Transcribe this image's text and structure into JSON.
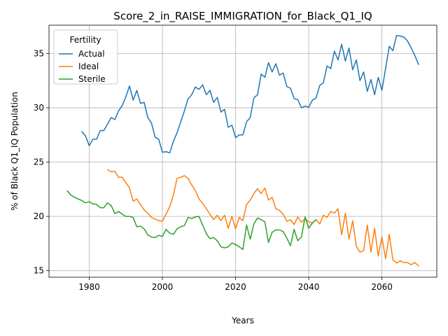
{
  "chart_data": {
    "type": "line",
    "title": "Score_2_in_RAISE_IMMIGRATION_for_Black_Q1_IQ",
    "xlabel": "Years",
    "ylabel": "% of Black Q1_IQ Population",
    "xlim": [
      1969,
      2075
    ],
    "ylim": [
      14.4,
      37.6
    ],
    "xticks": [
      1980,
      2000,
      2020,
      2040,
      2060
    ],
    "yticks": [
      15,
      20,
      25,
      30,
      35
    ],
    "grid": true,
    "legend": {
      "title": "Fertility",
      "position": "top-left"
    },
    "series": [
      {
        "name": "Actual",
        "color": "#1f77b4",
        "x": [
          1978,
          1979,
          1980,
          1981,
          1982,
          1983,
          1984,
          1985,
          1986,
          1987,
          1988,
          1989,
          1990,
          1991,
          1992,
          1993,
          1994,
          1995,
          1996,
          1997,
          1998,
          1999,
          2000,
          2001,
          2002,
          2003,
          2004,
          2005,
          2006,
          2007,
          2008,
          2009,
          2010,
          2011,
          2012,
          2013,
          2014,
          2015,
          2016,
          2017,
          2018,
          2019,
          2020,
          2021,
          2022,
          2023,
          2024,
          2025,
          2026,
          2027,
          2028,
          2029,
          2030,
          2031,
          2032,
          2033,
          2034,
          2035,
          2036,
          2037,
          2038,
          2039,
          2040,
          2041,
          2042,
          2043,
          2044,
          2045,
          2046,
          2047,
          2048,
          2049,
          2050,
          2051,
          2052,
          2053,
          2054,
          2055,
          2056,
          2057,
          2058,
          2059,
          2060,
          2061,
          2062,
          2063,
          2064,
          2065,
          2066,
          2067,
          2068,
          2069,
          2070
        ],
        "values": [
          27.8,
          27.4,
          26.5,
          27.1,
          27.1,
          27.9,
          27.9,
          28.5,
          29.1,
          28.9,
          29.7,
          30.2,
          31.0,
          32.0,
          30.7,
          31.6,
          30.4,
          30.5,
          29.1,
          28.6,
          27.3,
          27.1,
          25.9,
          25.95,
          25.85,
          26.9,
          27.7,
          28.7,
          29.7,
          30.8,
          31.2,
          31.9,
          31.7,
          32.1,
          31.2,
          31.6,
          30.5,
          30.95,
          29.6,
          29.85,
          28.2,
          28.4,
          27.25,
          27.5,
          27.5,
          28.7,
          29.1,
          30.9,
          31.2,
          33.1,
          32.8,
          34.15,
          33.3,
          34.05,
          33.0,
          33.2,
          31.95,
          31.8,
          30.85,
          30.75,
          30.0,
          30.15,
          30.05,
          30.7,
          30.9,
          32.05,
          32.3,
          33.85,
          33.6,
          35.2,
          34.4,
          35.85,
          34.3,
          35.5,
          33.5,
          34.4,
          32.5,
          33.3,
          31.5,
          32.6,
          31.2,
          32.8,
          31.6,
          33.6,
          35.65,
          35.25,
          36.65,
          36.6,
          36.5,
          36.15,
          35.5,
          34.8,
          34.0
        ]
      },
      {
        "name": "Ideal",
        "color": "#ff7f0e",
        "x": [
          1985,
          1986,
          1987,
          1988,
          1989,
          1990,
          1991,
          1992,
          1993,
          1994,
          1995,
          1996,
          1997,
          1998,
          1999,
          2000,
          2001,
          2002,
          2003,
          2004,
          2005,
          2006,
          2007,
          2008,
          2009,
          2010,
          2011,
          2012,
          2013,
          2014,
          2015,
          2016,
          2017,
          2018,
          2019,
          2020,
          2021,
          2022,
          2023,
          2024,
          2025,
          2026,
          2027,
          2028,
          2029,
          2030,
          2031,
          2032,
          2033,
          2034,
          2035,
          2036,
          2037,
          2038,
          2039,
          2040,
          2041,
          2042,
          2043,
          2044,
          2045,
          2046,
          2047,
          2048,
          2049,
          2050,
          2051,
          2052,
          2053,
          2054,
          2055,
          2056,
          2057,
          2058,
          2059,
          2060,
          2061,
          2062,
          2063,
          2064,
          2065,
          2066,
          2067,
          2068,
          2069,
          2070
        ],
        "values": [
          24.3,
          24.1,
          24.15,
          23.6,
          23.6,
          23.1,
          22.65,
          21.4,
          21.6,
          21.1,
          20.6,
          20.3,
          19.9,
          19.75,
          19.6,
          19.55,
          20.2,
          20.9,
          21.95,
          23.5,
          23.6,
          23.75,
          23.5,
          22.9,
          22.4,
          21.6,
          21.2,
          20.7,
          20.2,
          19.7,
          20.1,
          19.6,
          20.1,
          18.9,
          20.0,
          18.85,
          19.9,
          19.6,
          21.1,
          21.5,
          22.1,
          22.55,
          22.1,
          22.6,
          21.5,
          21.75,
          20.7,
          20.55,
          20.2,
          19.55,
          19.7,
          19.25,
          19.95,
          19.45,
          19.8,
          19.5,
          19.4,
          19.7,
          19.3,
          20.1,
          19.9,
          20.45,
          20.3,
          20.7,
          18.3,
          20.3,
          17.9,
          19.6,
          17.25,
          16.7,
          16.85,
          19.2,
          16.7,
          18.9,
          16.35,
          18.1,
          16.1,
          18.35,
          16.0,
          15.7,
          15.9,
          15.75,
          15.75,
          15.55,
          15.75,
          15.45
        ]
      },
      {
        "name": "Sterile",
        "color": "#2ca02c",
        "x": [
          1974,
          1975,
          1976,
          1977,
          1978,
          1979,
          1980,
          1981,
          1982,
          1983,
          1984,
          1985,
          1986,
          1987,
          1988,
          1989,
          1990,
          1991,
          1992,
          1993,
          1994,
          1995,
          1996,
          1997,
          1998,
          1999,
          2000,
          2001,
          2002,
          2003,
          2004,
          2005,
          2006,
          2007,
          2008,
          2009,
          2010,
          2011,
          2012,
          2013,
          2014,
          2015,
          2016,
          2017,
          2018,
          2019,
          2020,
          2021,
          2022,
          2023,
          2024,
          2025,
          2026,
          2027,
          2028,
          2029,
          2030,
          2031,
          2032,
          2033,
          2034,
          2035,
          2036,
          2037,
          2038,
          2039,
          2040,
          2041,
          2042
        ],
        "values": [
          22.35,
          21.95,
          21.75,
          21.6,
          21.45,
          21.25,
          21.35,
          21.15,
          21.1,
          20.8,
          20.8,
          21.25,
          21.0,
          20.25,
          20.45,
          20.2,
          20.0,
          20.0,
          19.9,
          19.05,
          19.1,
          18.85,
          18.3,
          18.1,
          18.05,
          18.25,
          18.15,
          18.8,
          18.45,
          18.35,
          18.85,
          19.05,
          19.15,
          19.9,
          19.8,
          19.95,
          20.0,
          19.2,
          18.4,
          17.95,
          18.05,
          17.75,
          17.2,
          17.1,
          17.2,
          17.55,
          17.4,
          17.2,
          16.95,
          19.2,
          17.9,
          19.3,
          19.85,
          19.7,
          19.5,
          17.6,
          18.55,
          18.75,
          18.75,
          18.6,
          18.0,
          17.3,
          18.8,
          17.75,
          18.1,
          19.95,
          18.9,
          19.4,
          19.7
        ]
      }
    ]
  }
}
